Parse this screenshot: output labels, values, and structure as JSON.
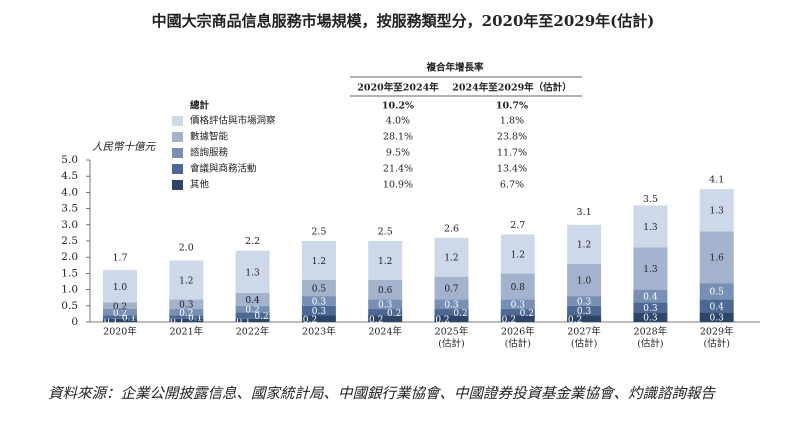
{
  "chart_data": {
    "type": "stacked-bar",
    "title": "中國大宗商品信息服務市場規模，按服務類型分，2020年至2029年(估計)",
    "y_label": "人民幣十億元",
    "categories": [
      "2020年",
      "2021年",
      "2022年",
      "2023年",
      "2024年",
      "2025年",
      "2026年",
      "2027年",
      "2028年",
      "2029年"
    ],
    "category_sublabels": [
      null,
      null,
      null,
      null,
      null,
      "(估計)",
      "(估計)",
      "(估計)",
      "(估計)",
      "(估計)"
    ],
    "ylim": [
      0,
      5
    ],
    "yticks": [
      0,
      0.5,
      {
        "value": 1,
        "label": "1.0"
      },
      1.5,
      {
        "value": 2,
        "label": "2.0"
      },
      2.5,
      {
        "value": 3,
        "label": "3.0"
      },
      3.5,
      {
        "value": 4,
        "label": "4.0"
      },
      4.5,
      {
        "value": 5,
        "label": "5.0"
      }
    ],
    "series": [
      {
        "name": "其他",
        "color": "#2d4569",
        "text_color": "#ffffff",
        "values": [
          0.1,
          0.1,
          0.1,
          0.2,
          0.2,
          0.2,
          0.2,
          0.2,
          0.3,
          0.3
        ],
        "value_labels": [
          "0.1",
          "0.1",
          "0.1",
          "0.2",
          "0.2",
          "0.2",
          "0.2",
          "0.2",
          "0.3",
          "0.3"
        ],
        "cagr": [
          10.9,
          6.7
        ],
        "cagr_labels": [
          "10.9%",
          "6.7%"
        ]
      },
      {
        "name": "會議與商務活動",
        "color": "#4c6996",
        "text_color": "#ffffff",
        "values": [
          0.1,
          0.1,
          0.2,
          0.3,
          0.2,
          0.2,
          0.2,
          0.3,
          0.3,
          0.4
        ],
        "value_labels": [
          "0.1",
          "0.1",
          "0.2",
          "0.3",
          "0.2",
          "0.2",
          "0.2",
          "0.3",
          "0.3",
          "0.4"
        ],
        "cagr": [
          21.4,
          13.4
        ],
        "cagr_labels": [
          "21.4%",
          "13.4%"
        ]
      },
      {
        "name": "諮詢服務",
        "color": "#7990b6",
        "text_color": "#ffffff",
        "values": [
          0.2,
          0.2,
          0.2,
          0.3,
          0.3,
          0.3,
          0.3,
          0.3,
          0.4,
          0.5
        ],
        "value_labels": [
          "0.2",
          "0.2",
          "0.2",
          "0.3",
          "0.3",
          "0.3",
          "0.3",
          "0.3",
          "0.4",
          "0.5"
        ],
        "cagr": [
          9.5,
          11.7
        ],
        "cagr_labels": [
          "9.5%",
          "11.7%"
        ]
      },
      {
        "name": "數據智能",
        "color": "#a3b3cd",
        "text_color": "#222222",
        "values": [
          0.2,
          0.3,
          0.4,
          0.5,
          0.6,
          0.7,
          0.8,
          1.0,
          1.3,
          1.6
        ],
        "value_labels": [
          "0.2",
          "0.3",
          "0.4",
          "0.5",
          "0.6",
          "0.7",
          "0.8",
          "1.0",
          "1.3",
          "1.6"
        ],
        "cagr": [
          28.1,
          23.8
        ],
        "cagr_labels": [
          "28.1%",
          "23.8%"
        ]
      },
      {
        "name": "價格評估與市場洞察",
        "color": "#cdd8e9",
        "text_color": "#222222",
        "values": [
          1.0,
          1.2,
          1.3,
          1.2,
          1.2,
          1.2,
          1.2,
          1.2,
          1.3,
          1.3
        ],
        "value_labels": [
          "1.0",
          "1.2",
          "1.3",
          "1.2",
          "1.2",
          "1.2",
          "1.2",
          "1.2",
          "1.3",
          "1.3"
        ],
        "cagr": [
          4.0,
          1.8
        ],
        "cagr_labels": [
          "4.0%",
          "1.8%"
        ]
      }
    ],
    "totals": {
      "values": [
        1.7,
        2.0,
        2.2,
        2.5,
        2.5,
        2.6,
        2.7,
        3.1,
        3.5,
        4.1
      ],
      "value_labels": [
        "1.7",
        "2.0",
        "2.2",
        "2.5",
        "2.5",
        "2.6",
        "2.7",
        "3.1",
        "3.5",
        "4.1"
      ]
    },
    "cagr_table": {
      "title": "複合年增長率",
      "columns": [
        "2020年至2024年",
        "2024年至2029年（估計）"
      ],
      "total_name": "總計",
      "total": [
        10.2,
        10.7
      ],
      "total_labels": [
        "10.2%",
        "10.7%"
      ]
    },
    "source": "資料來源：企業公開披露信息、國家統計局、中國銀行業協會、中國證券投資基金業協會、灼識諮詢報告"
  }
}
